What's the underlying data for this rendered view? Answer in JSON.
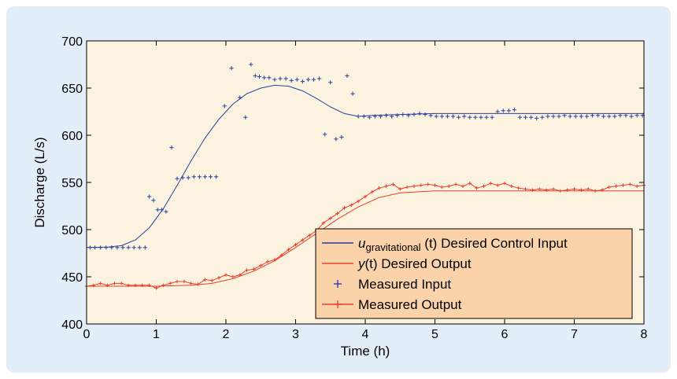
{
  "chart_data": {
    "type": "line",
    "xlabel": "Time (h)",
    "ylabel": "Discharge (L/s)",
    "xlim": [
      0,
      8
    ],
    "ylim": [
      400,
      700
    ],
    "xticks": [
      0,
      1,
      2,
      3,
      4,
      5,
      6,
      7,
      8
    ],
    "yticks": [
      400,
      450,
      500,
      550,
      600,
      650,
      700
    ],
    "grid": false,
    "legend_position": "lower-right",
    "colors": {
      "plot_bg": "#fbf3df",
      "legend_bg": "#fbd3ab",
      "blue": "#2b3f9e",
      "red": "#e8402a"
    },
    "legend": [
      {
        "key": "u",
        "math_var": "u",
        "math_sub": "gravitational",
        "math_arg": " (t)",
        "text": " Desired Control Input",
        "style": "line",
        "color": "#2b3f9e"
      },
      {
        "key": "y",
        "math_var": "y",
        "math_sub": "",
        "math_arg": "(t)",
        "text": " Desired Output",
        "style": "line",
        "color": "#e8402a"
      },
      {
        "key": "mi",
        "math_var": "",
        "math_sub": "",
        "math_arg": "",
        "text": "Measured Input",
        "style": "plus",
        "color": "#2b3f9e"
      },
      {
        "key": "mo",
        "math_var": "",
        "math_sub": "",
        "math_arg": "",
        "text": "Measured Output",
        "style": "line-plus",
        "color": "#e8402a"
      }
    ],
    "series": [
      {
        "name": "u_gravitational(t) Desired Control Input",
        "style": "line",
        "color": "#2b3f9e",
        "x": [
          0,
          0.3,
          0.5,
          0.7,
          0.9,
          1.1,
          1.3,
          1.5,
          1.7,
          1.9,
          2.1,
          2.3,
          2.5,
          2.7,
          2.9,
          3.1,
          3.3,
          3.5,
          3.7,
          3.9,
          4.1,
          4.5,
          5.0,
          6.0,
          7.0,
          8.0
        ],
        "y": [
          481,
          481.5,
          483,
          489,
          502,
          522,
          547,
          573,
          597,
          617,
          633,
          644,
          650,
          653,
          652,
          647,
          639,
          630,
          623,
          620,
          621,
          622,
          623,
          623,
          623,
          623
        ]
      },
      {
        "name": "y(t) Desired Output",
        "style": "line",
        "color": "#e8402a",
        "x": [
          0,
          0.5,
          1.0,
          1.5,
          1.8,
          2.1,
          2.4,
          2.7,
          3.0,
          3.3,
          3.6,
          3.9,
          4.2,
          4.5,
          5.0,
          6.0,
          7.0,
          8.0
        ],
        "y": [
          440,
          440,
          440,
          441,
          443,
          448,
          456,
          467,
          481,
          496,
          511,
          524,
          534,
          539,
          541,
          541,
          541,
          541
        ]
      },
      {
        "name": "Measured Input",
        "style": "plus",
        "color": "#2b3f9e",
        "x": [
          0.05,
          0.12,
          0.2,
          0.28,
          0.36,
          0.44,
          0.52,
          0.6,
          0.68,
          0.76,
          0.84,
          0.9,
          0.96,
          1.02,
          1.08,
          1.14,
          1.22,
          1.3,
          1.38,
          1.46,
          1.54,
          1.62,
          1.7,
          1.78,
          1.86,
          1.98,
          2.08,
          2.2,
          2.28,
          2.36,
          2.42,
          2.48,
          2.55,
          2.62,
          2.7,
          2.78,
          2.86,
          2.94,
          3.02,
          3.1,
          3.18,
          3.26,
          3.34,
          3.42,
          3.5,
          3.58,
          3.66,
          3.74,
          3.82,
          3.9,
          3.98,
          4.06,
          4.14,
          4.22,
          4.3,
          4.38,
          4.46,
          4.54,
          4.62,
          4.7,
          4.78,
          4.86,
          4.94,
          5.02,
          5.1,
          5.18,
          5.26,
          5.34,
          5.42,
          5.5,
          5.58,
          5.66,
          5.74,
          5.82,
          5.9,
          5.98,
          6.06,
          6.14,
          6.22,
          6.3,
          6.38,
          6.46,
          6.54,
          6.62,
          6.7,
          6.78,
          6.86,
          6.94,
          7.02,
          7.1,
          7.18,
          7.26,
          7.34,
          7.42,
          7.5,
          7.58,
          7.66,
          7.74,
          7.82,
          7.9,
          7.98
        ],
        "y": [
          481,
          481,
          481,
          481,
          481,
          481,
          481,
          481,
          481,
          481,
          481,
          535,
          531,
          521,
          521,
          519,
          587,
          554,
          555,
          555,
          556,
          556,
          556,
          556,
          556,
          631,
          671,
          640,
          619,
          675,
          663,
          662,
          661,
          661,
          659,
          660,
          660,
          658,
          659,
          657,
          659,
          659,
          660,
          601,
          656,
          596,
          598,
          663,
          644,
          620,
          620,
          619,
          620,
          620,
          621,
          620,
          621,
          622,
          621,
          622,
          623,
          622,
          621,
          620,
          620,
          620,
          620,
          619,
          620,
          619,
          619,
          619,
          619,
          619,
          625,
          626,
          626,
          627,
          619,
          619,
          619,
          618,
          619,
          620,
          620,
          620,
          621,
          620,
          620,
          620,
          620,
          621,
          621,
          620,
          620,
          620,
          621,
          621,
          620,
          621,
          621
        ]
      },
      {
        "name": "Measured Output",
        "style": "line-plus",
        "color": "#e8402a",
        "x": [
          0.0,
          0.1,
          0.2,
          0.3,
          0.4,
          0.5,
          0.6,
          0.7,
          0.8,
          0.9,
          1.0,
          1.1,
          1.2,
          1.3,
          1.4,
          1.5,
          1.6,
          1.7,
          1.8,
          1.9,
          2.0,
          2.1,
          2.2,
          2.3,
          2.4,
          2.5,
          2.6,
          2.7,
          2.8,
          2.9,
          3.0,
          3.1,
          3.2,
          3.3,
          3.4,
          3.5,
          3.6,
          3.7,
          3.8,
          3.9,
          4.0,
          4.1,
          4.2,
          4.3,
          4.4,
          4.5,
          4.6,
          4.7,
          4.8,
          4.9,
          5.0,
          5.1,
          5.2,
          5.3,
          5.4,
          5.5,
          5.6,
          5.7,
          5.8,
          5.9,
          6.0,
          6.1,
          6.2,
          6.3,
          6.4,
          6.5,
          6.6,
          6.7,
          6.8,
          6.9,
          7.0,
          7.1,
          7.2,
          7.3,
          7.4,
          7.5,
          7.6,
          7.7,
          7.8,
          7.9,
          8.0
        ],
        "y": [
          440,
          441,
          443,
          441,
          443,
          443,
          441,
          441,
          441,
          441,
          438,
          441,
          443,
          445,
          445,
          443,
          442,
          447,
          446,
          449,
          452,
          450,
          452,
          457,
          458,
          462,
          466,
          468,
          473,
          479,
          484,
          489,
          494,
          499,
          507,
          512,
          517,
          523,
          526,
          530,
          535,
          540,
          544,
          546,
          548,
          543,
          545,
          546,
          547,
          548,
          547,
          545,
          546,
          548,
          546,
          549,
          544,
          546,
          549,
          547,
          549,
          546,
          544,
          543,
          542,
          543,
          542,
          543,
          541,
          542,
          543,
          542,
          543,
          541,
          542,
          545,
          546,
          547,
          548,
          546,
          547
        ]
      }
    ]
  }
}
